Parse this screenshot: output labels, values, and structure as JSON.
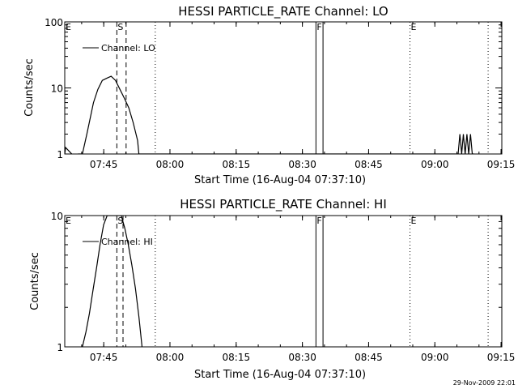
{
  "chart_data": [
    {
      "type": "line",
      "title": "HESSI PARTICLE_RATE Channel: LO",
      "xlabel": "Start Time (16-Aug-04 07:37:10)",
      "ylabel": "Counts/sec",
      "yscale": "log",
      "ylim": [
        1,
        100
      ],
      "xlim_min": [
        -1.0,
        98.0
      ],
      "yticks": [
        1,
        10,
        100
      ],
      "ytick_labels": [
        "1",
        "10",
        "100"
      ],
      "xticks_min": [
        7.83,
        22.83,
        37.83,
        52.83,
        67.83,
        82.83,
        97.83
      ],
      "xtick_labels": [
        "07:45",
        "08:00",
        "08:15",
        "08:30",
        "08:45",
        "09:00",
        "09:15"
      ],
      "legend": {
        "entry": "Channel: LO",
        "position": "top-left"
      },
      "markers": [
        {
          "label": "E",
          "x_min": -1.0,
          "style": "none"
        },
        {
          "label": "S",
          "x_min": 10.8,
          "style": "dashed"
        },
        {
          "label": "",
          "x_min": 12.9,
          "style": "dashed"
        },
        {
          "label": "",
          "x_min": 19.5,
          "style": "dotted"
        },
        {
          "label": "F",
          "x_min": 55.9,
          "style": "solid"
        },
        {
          "label": "",
          "x_min": 57.5,
          "style": "solid"
        },
        {
          "label": "E",
          "x_min": 77.2,
          "style": "dotted"
        },
        {
          "label": "",
          "x_min": 94.9,
          "style": "dotted"
        }
      ],
      "series": [
        {
          "name": "",
          "x_min": [
            -1.0,
            -0.8,
            0.6,
            1.2,
            2.0,
            3.0,
            4.0,
            5.5,
            6.5,
            7.5,
            8.5,
            9.5,
            10.5,
            11.5,
            12.5,
            13.5,
            14.5,
            15.5,
            15.8,
            88.1,
            88.5,
            88.9,
            89.3,
            89.7,
            90.1,
            90.5,
            90.9,
            91.3,
            91.7
          ],
          "y": [
            1.0,
            1.25,
            1.0,
            null,
            1.0,
            1.0,
            2.0,
            6.0,
            9.5,
            13.0,
            14.0,
            15.0,
            13.0,
            9.5,
            7.0,
            5.0,
            3.0,
            1.6,
            1.0,
            1.0,
            2.0,
            1.0,
            2.0,
            1.0,
            2.0,
            1.0,
            2.0,
            1.0,
            1.0
          ]
        }
      ]
    },
    {
      "type": "line",
      "title": "HESSI PARTICLE_RATE Channel: HI",
      "xlabel": "Start Time (16-Aug-04 07:37:10)",
      "ylabel": "Counts/sec",
      "yscale": "log",
      "ylim": [
        1,
        10
      ],
      "xlim_min": [
        -1.0,
        98.0
      ],
      "yticks": [
        1,
        10
      ],
      "ytick_labels": [
        "1",
        "10"
      ],
      "xticks_min": [
        7.83,
        22.83,
        37.83,
        52.83,
        67.83,
        82.83,
        97.83
      ],
      "xtick_labels": [
        "07:45",
        "08:00",
        "08:15",
        "08:30",
        "08:45",
        "09:00",
        "09:15"
      ],
      "legend": {
        "entry": "Channel: HI",
        "position": "top-left"
      },
      "markers": [
        {
          "label": "E",
          "x_min": -1.0,
          "style": "none"
        },
        {
          "label": "S",
          "x_min": 10.8,
          "style": "dashed"
        },
        {
          "label": "",
          "x_min": 12.2,
          "style": "dashed"
        },
        {
          "label": "",
          "x_min": 19.5,
          "style": "dotted"
        },
        {
          "label": "F",
          "x_min": 55.9,
          "style": "solid"
        },
        {
          "label": "",
          "x_min": 57.5,
          "style": "solid"
        },
        {
          "label": "E",
          "x_min": 77.2,
          "style": "dotted"
        },
        {
          "label": "",
          "x_min": 94.9,
          "style": "dotted"
        }
      ],
      "series": [
        {
          "name": "",
          "x_min": [
            3.0,
            3.8,
            4.6,
            5.4,
            6.2,
            7.0,
            7.8,
            8.6,
            9.4,
            10.2,
            11.0,
            11.8,
            12.6,
            13.4,
            14.2,
            15.0,
            15.8,
            16.5
          ],
          "y": [
            1.0,
            1.3,
            1.8,
            2.7,
            4.0,
            6.0,
            8.5,
            10.0,
            10.0,
            10.0,
            10.0,
            10.0,
            8.0,
            6.0,
            4.2,
            2.8,
            1.7,
            1.0
          ]
        }
      ]
    }
  ],
  "footer": {
    "timestamp": "29-Nov-2009 22:01"
  }
}
